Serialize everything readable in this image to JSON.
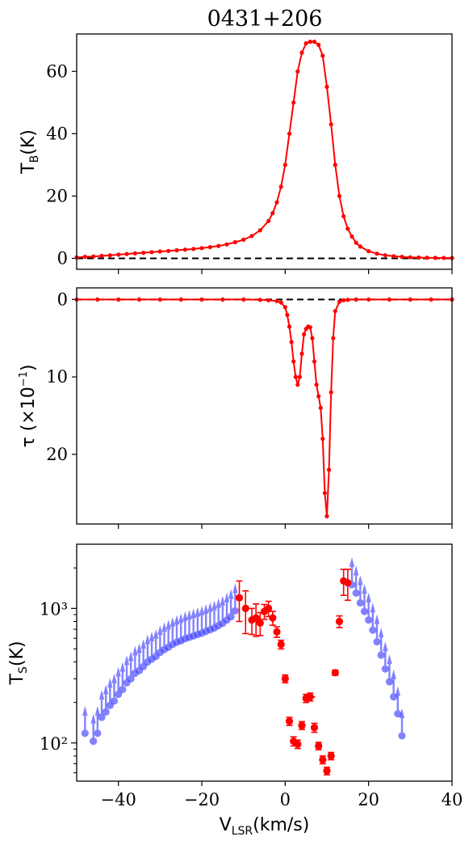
{
  "chart_data": [
    {
      "type": "line",
      "title": "0431+206",
      "xlabel": "V_LSR(km/s)",
      "ylabel": "T_B(K)",
      "xlim": [
        -50,
        40
      ],
      "ylim": [
        -3.5,
        72
      ],
      "yticks": [
        "0",
        "20",
        "40",
        "60"
      ],
      "xticks": [],
      "reference_line": {
        "y": 0,
        "style": "dashed",
        "color": "#000000"
      },
      "series": [
        {
          "color": "#ff0000",
          "marker": "dot",
          "x": [
            -50,
            -48,
            -46,
            -44,
            -42,
            -40,
            -38,
            -36,
            -34,
            -32,
            -30,
            -28,
            -26,
            -24,
            -22,
            -20,
            -18,
            -16,
            -14,
            -12,
            -10,
            -8,
            -6,
            -4,
            -3,
            -2,
            -1,
            0,
            1,
            2,
            3,
            4,
            5,
            6,
            7,
            8,
            9,
            10,
            11,
            12,
            13,
            14,
            15,
            16,
            17,
            18,
            20,
            22,
            24,
            26,
            28,
            30,
            32,
            34,
            36,
            38,
            40
          ],
          "y": [
            0.3,
            0.5,
            0.6,
            0.8,
            1.0,
            1.2,
            1.4,
            1.6,
            1.8,
            2.0,
            2.2,
            2.4,
            2.6,
            2.8,
            3.0,
            3.3,
            3.6,
            4.0,
            4.5,
            5.2,
            6.0,
            7.2,
            9.0,
            12.0,
            14.5,
            18.0,
            23.0,
            30.0,
            40.0,
            50.0,
            60.0,
            66.0,
            69.0,
            69.5,
            69.5,
            68.5,
            65.0,
            55.0,
            43.0,
            30.0,
            20.0,
            13.5,
            9.5,
            7.0,
            5.0,
            3.8,
            2.3,
            1.5,
            1.0,
            0.7,
            0.5,
            0.35,
            0.25,
            0.2,
            0.15,
            0.12,
            0.1
          ]
        }
      ]
    },
    {
      "type": "line",
      "xlabel": "V_LSR(km/s)",
      "ylabel": "τ (×10⁻¹)",
      "xlim": [
        -50,
        40
      ],
      "ylim": [
        29,
        -1.5
      ],
      "y_inverted": true,
      "yticks": [
        "0",
        "10",
        "20"
      ],
      "xticks": [],
      "reference_line": {
        "y": 0,
        "style": "dashed",
        "color": "#000000"
      },
      "series": [
        {
          "color": "#ff0000",
          "marker": "dot",
          "x": [
            -50,
            -45,
            -40,
            -35,
            -30,
            -25,
            -20,
            -15,
            -10,
            -6,
            -4,
            -2,
            -1,
            0,
            0.5,
            1,
            1.5,
            2,
            2.5,
            3,
            3.5,
            4,
            4.5,
            5,
            5.5,
            6,
            6.5,
            7,
            7.5,
            8,
            8.5,
            9,
            9.5,
            10,
            10.5,
            11,
            11.5,
            12,
            13,
            14,
            15,
            17,
            20,
            25,
            30,
            35,
            40
          ],
          "y": [
            0,
            0,
            0,
            0,
            0,
            0,
            0,
            0,
            0,
            0.05,
            0.1,
            0.2,
            0.4,
            1.0,
            2.0,
            3.5,
            5.5,
            8.0,
            10.0,
            11.0,
            10.0,
            7.0,
            4.5,
            3.8,
            3.5,
            3.6,
            5.0,
            8.0,
            11.0,
            12.5,
            14.0,
            18.0,
            25.0,
            28.0,
            22.0,
            12.0,
            5.0,
            1.5,
            0.3,
            0.1,
            0.05,
            0,
            0,
            0,
            0,
            0,
            0
          ]
        }
      ]
    },
    {
      "type": "scatter",
      "xlabel": "V_LSR(km/s)",
      "ylabel": "T_S(K)",
      "xlim": [
        -50,
        40
      ],
      "ylim": [
        52,
        3000
      ],
      "yscale": "log",
      "yticks": [
        "10²",
        "10³"
      ],
      "xticks": [
        "−40",
        "−20",
        "0",
        "20",
        "40"
      ],
      "series": [
        {
          "color": "#4040ff",
          "marker": "circle-with-upper-limit-arrow",
          "x": [
            -48,
            -46,
            -45,
            -44,
            -43,
            -42,
            -41,
            -40,
            -39,
            -38,
            -37,
            -36,
            -35,
            -34,
            -33,
            -32,
            -31,
            -30,
            -29,
            -28,
            -27,
            -26,
            -25,
            -24,
            -23,
            -22,
            -21,
            -20,
            -19,
            -18,
            -17,
            -16,
            -15,
            -14,
            -13,
            -12,
            16,
            17,
            18,
            19,
            20,
            21,
            22,
            23,
            24,
            25,
            26,
            27,
            28
          ],
          "y": [
            118,
            103,
            118,
            155,
            170,
            190,
            205,
            230,
            250,
            280,
            300,
            330,
            345,
            370,
            400,
            420,
            440,
            470,
            495,
            515,
            540,
            560,
            575,
            595,
            610,
            625,
            640,
            655,
            675,
            695,
            715,
            745,
            775,
            820,
            870,
            960,
            1500,
            1300,
            1100,
            950,
            820,
            690,
            565,
            450,
            355,
            285,
            220,
            165,
            113
          ]
        },
        {
          "color": "#ff0000",
          "marker": "circle-with-error-bars",
          "x": [
            -11,
            -9.5,
            -8,
            -7,
            -6,
            -5,
            -4,
            -3,
            -2,
            -1,
            0,
            1,
            2,
            3,
            4,
            5,
            6,
            7,
            8,
            9,
            10,
            11,
            12,
            13,
            14,
            15
          ],
          "y": [
            1200,
            1000,
            820,
            850,
            780,
            950,
            1000,
            850,
            670,
            540,
            300,
            145,
            103,
            98,
            135,
            215,
            220,
            130,
            95,
            75,
            62,
            80,
            333,
            800,
            1600,
            1550
          ],
          "yerr": [
            [
              400,
              350,
              180,
              230,
              150,
              120,
              130,
              100,
              60,
              40,
              20,
              10,
              8,
              7,
              9,
              15,
              15,
              10,
              6,
              5,
              4,
              5,
              15,
              80,
              350,
              400
            ],
            [
              400,
              350,
              180,
              230,
              150,
              120,
              130,
              100,
              60,
              40,
              20,
              10,
              8,
              7,
              9,
              15,
              15,
              10,
              6,
              5,
              4,
              5,
              15,
              80,
              350,
              400
            ]
          ],
          "xerr": [
            0.5,
            0.5,
            0.5,
            0.5,
            0.5,
            0.5,
            0.5,
            0.5,
            0.5,
            0.5,
            0.5,
            0.5,
            0.6,
            0.6,
            0.6,
            0.8,
            1.2,
            0.6,
            0.6,
            0.6,
            0.6,
            0.6,
            0.8,
            0.6,
            0.6,
            0.6
          ]
        }
      ]
    }
  ]
}
